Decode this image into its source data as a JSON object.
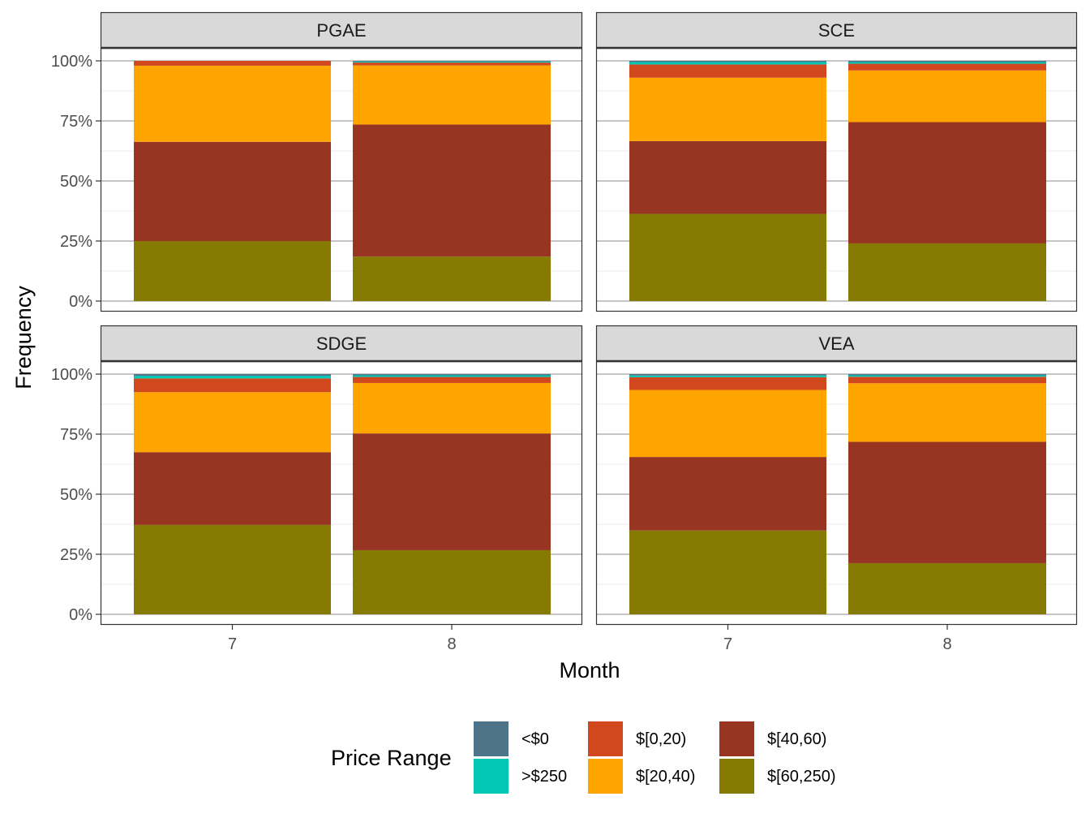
{
  "chart_data": {
    "type": "bar",
    "stacked": true,
    "facets": [
      "PGAE",
      "SCE",
      "SDGE",
      "VEA"
    ],
    "categories": [
      "7",
      "8"
    ],
    "xlabel": "Month",
    "ylabel": "Frequency",
    "ylim": [
      0,
      1
    ],
    "yticks": [
      0,
      0.25,
      0.5,
      0.75,
      1.0
    ],
    "ytick_labels": [
      "0%",
      "25%",
      "50%",
      "75%",
      "100%"
    ],
    "grid": true,
    "legend": {
      "title": "Price Range",
      "placement": "bottom",
      "entries": [
        {
          "name": "<$0",
          "color": "#4e7489"
        },
        {
          "name": ">$250",
          "color": "#00c8b4"
        },
        {
          "name": "$[0,20)",
          "color": "#d1481e"
        },
        {
          "name": "$[20,40)",
          "color": "#ffa500"
        },
        {
          "name": "$[40,60)",
          "color": "#983522"
        },
        {
          "name": "$[60,250)",
          "color": "#857b03"
        }
      ]
    },
    "stack_order_bottom_to_top": [
      "$[60,250)",
      "$[40,60)",
      "$[20,40)",
      "$[0,20)",
      ">$250",
      "<$0"
    ],
    "panels": [
      {
        "facet": "PGAE",
        "series": [
          {
            "name": "$[60,250)",
            "values": [
              0.25,
              0.185
            ]
          },
          {
            "name": "$[40,60)",
            "values": [
              0.413,
              0.55
            ]
          },
          {
            "name": "$[20,40)",
            "values": [
              0.317,
              0.246
            ]
          },
          {
            "name": "$[0,20)",
            "values": [
              0.02,
              0.012
            ]
          },
          {
            "name": ">$250",
            "values": [
              0.0,
              0.004
            ]
          },
          {
            "name": "<$0",
            "values": [
              0.0,
              0.003
            ]
          }
        ]
      },
      {
        "facet": "SCE",
        "series": [
          {
            "name": "$[60,250)",
            "values": [
              0.363,
              0.24
            ]
          },
          {
            "name": "$[40,60)",
            "values": [
              0.303,
              0.505
            ]
          },
          {
            "name": "$[20,40)",
            "values": [
              0.264,
              0.215
            ]
          },
          {
            "name": "$[0,20)",
            "values": [
              0.055,
              0.028
            ]
          },
          {
            "name": ">$250",
            "values": [
              0.01,
              0.007
            ]
          },
          {
            "name": "<$0",
            "values": [
              0.005,
              0.005
            ]
          }
        ]
      },
      {
        "facet": "SDGE",
        "series": [
          {
            "name": "$[60,250)",
            "values": [
              0.372,
              0.267
            ]
          },
          {
            "name": "$[40,60)",
            "values": [
              0.303,
              0.486
            ]
          },
          {
            "name": "$[20,40)",
            "values": [
              0.25,
              0.21
            ]
          },
          {
            "name": "$[0,20)",
            "values": [
              0.057,
              0.025
            ]
          },
          {
            "name": ">$250",
            "values": [
              0.011,
              0.007
            ]
          },
          {
            "name": "<$0",
            "values": [
              0.007,
              0.005
            ]
          }
        ]
      },
      {
        "facet": "VEA",
        "series": [
          {
            "name": "$[60,250)",
            "values": [
              0.349,
              0.213
            ]
          },
          {
            "name": "$[40,60)",
            "values": [
              0.306,
              0.505
            ]
          },
          {
            "name": "$[20,40)",
            "values": [
              0.279,
              0.244
            ]
          },
          {
            "name": "$[0,20)",
            "values": [
              0.053,
              0.027
            ]
          },
          {
            "name": ">$250",
            "values": [
              0.007,
              0.006
            ]
          },
          {
            "name": "<$0",
            "values": [
              0.006,
              0.005
            ]
          }
        ]
      }
    ]
  }
}
